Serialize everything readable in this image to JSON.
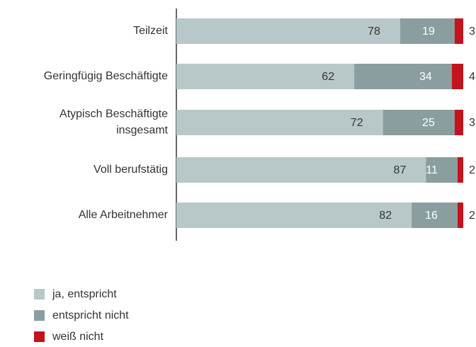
{
  "chart_data": {
    "type": "stacked-barh",
    "categories": [
      "Teilzeit",
      "Geringfügig Beschäftigte",
      "Atypisch Beschäftigte\ninsgesamt",
      "Voll berufstätig",
      "Alle Arbeitnehmer"
    ],
    "series": [
      {
        "name": "ja, entspricht",
        "color": "#b8c8c8",
        "values": [
          78,
          62,
          72,
          87,
          82
        ]
      },
      {
        "name": "entspricht nicht",
        "color": "#8a9e9f",
        "values": [
          19,
          34,
          25,
          11,
          16
        ]
      },
      {
        "name": "weiß nicht",
        "color": "#c3141d",
        "values": [
          3,
          4,
          3,
          2,
          2
        ]
      }
    ],
    "xlim": [
      0,
      100
    ]
  }
}
